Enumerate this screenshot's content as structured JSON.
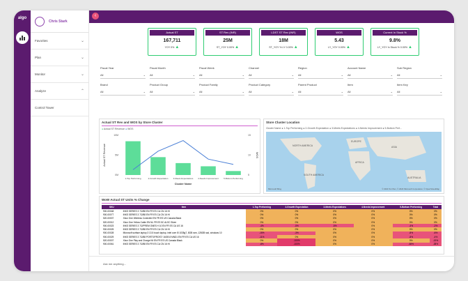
{
  "sidebar": {
    "logo": "algo",
    "user_name": "Chris Stark",
    "items": [
      {
        "label": "Favorites"
      },
      {
        "label": "Plan"
      },
      {
        "label": "Monitor"
      },
      {
        "label": "Analyze"
      },
      {
        "label": "Control Tower"
      }
    ]
  },
  "kpis": [
    {
      "title": "Actual ST",
      "value": "167,711",
      "sub": "YOY 0%"
    },
    {
      "title": "ST Rev (INR)",
      "value": "25M",
      "sub": "ST_YOY 0.00%"
    },
    {
      "title": "LDST ST Rev (INR)",
      "value": "18M",
      "sub": "ST_YOY % LY 0.00%"
    },
    {
      "title": "WOS",
      "value": "5.43",
      "sub": "LY_YOY 0.00%"
    },
    {
      "title": "Current In Stock %",
      "value": "9.8%",
      "sub": "LY_YOY In Stock % 0.00%"
    }
  ],
  "filters_row1": [
    {
      "label": "Fiscal Year",
      "value": "All"
    },
    {
      "label": "Fiscal Month",
      "value": "All"
    },
    {
      "label": "Fiscal Week",
      "value": "All"
    },
    {
      "label": "Channel",
      "value": "All"
    },
    {
      "label": "Region",
      "value": "All"
    },
    {
      "label": "Account Name",
      "value": "All"
    },
    {
      "label": "Sub Region",
      "value": "All"
    }
  ],
  "filters_row2": [
    {
      "label": "Brand",
      "value": "All"
    },
    {
      "label": "Product Group",
      "value": "All"
    },
    {
      "label": "Product Family",
      "value": "All"
    },
    {
      "label": "Product Category",
      "value": "All"
    },
    {
      "label": "Parent Product",
      "value": "All"
    },
    {
      "label": "Item",
      "value": "All"
    },
    {
      "label": "Item Key",
      "value": "All"
    }
  ],
  "chart_panel": {
    "title": "Actual ST Rev and WOS by Store Cluster",
    "legend_a": "Actual ST Revenue",
    "legend_b": "WOS"
  },
  "chart_data": {
    "type": "bar",
    "categories": [
      "1-Top Performing",
      "2-Growth Expectation",
      "3-Meets Expectations",
      "4-Needs Improvement",
      "5-Bottom Performing"
    ],
    "series": [
      {
        "name": "Actual ST Revenue",
        "values": [
          8.5,
          4.5,
          3.0,
          2.2,
          1.0
        ]
      },
      {
        "name": "WOS",
        "values": [
          2,
          9,
          13,
          6,
          4
        ]
      }
    ],
    "xlabel": "Cluster Name",
    "ylabel": "Actual ST Revenue",
    "y2label": "WOS",
    "ylim": [
      0,
      10
    ],
    "y2lim": [
      0,
      15
    ],
    "ytick_labels": [
      "10M",
      "5M",
      "0M"
    ],
    "y2tick_labels": [
      "15",
      "10",
      "5"
    ]
  },
  "map_panel": {
    "title": "Store Cluster Location",
    "legend": "Cluster Name ● 1-Top Performing ● 2-Growth Expectation ● 3-Meets Expectations ● 4-Needs Improvement ● 5-Bottom Perf...",
    "labels": [
      "NORTH AMERICA",
      "EUROPE",
      "ASIA",
      "AFRICA",
      "SOUTH AMERICA",
      "AUSTRALIA"
    ],
    "attribution": "© 2024 TomTom, © 2024 Microsoft Corporation, © OpenStreetMap",
    "brand": "Microsoft Bing"
  },
  "table_panel": {
    "title": "WoW Actual ST Units % Change",
    "columns": [
      "SKU",
      "Item",
      "1-Top Performing",
      "2-Growth Expectation",
      "3-Meets Expectations",
      "4-Needs Improvement",
      "5-Bottom Performing",
      "Total"
    ],
    "rows": [
      [
        "900-00048",
        "INKS SERIES 3 7/2/88 EN FR ES CA CN 16 HI",
        "0%",
        "0%",
        "0%",
        "0%",
        "0%",
        "0%"
      ],
      [
        "900-00077",
        "INKS SERIES 3 7/2/88 EN FR ES CA CN 16 HI",
        "0%",
        "0%",
        "0%",
        "0%",
        "0%",
        "0%"
      ],
      [
        "520-00007",
        "Xbox One Wireless Controller EN FR ES US Canada Black",
        "0%",
        "0%",
        "0%",
        "0%",
        "0%",
        "0%"
      ],
      [
        "520-00012",
        "Xbox One Yellow Cable EN NL FR ES 5C ALSC Silver",
        "0%",
        "0%",
        "0%",
        "0%",
        "0%",
        "0%"
      ],
      [
        "900-00023",
        "INKS SERIES 3 7/2/PREM ONES H 10 EN FR ES CA US 16",
        "-4%",
        "-5%",
        "-5%",
        "0%",
        "-4%",
        "-2%"
      ],
      [
        "900-00025",
        "INKS SERIES 3 7/2/88 EN FR ES CA CN 16 HI",
        "0%",
        "0%",
        "0%",
        "0%",
        "0%",
        "0%"
      ],
      [
        "900-00028",
        "Microsoft surface laptop 3 13.5 touch laptop, intel core i5 1035g7, 8GB ram, 128GB ssd, windows 10",
        "-15%",
        "-3%",
        "0%",
        "0%",
        "-8%",
        "-6%"
      ],
      [
        "900-00029",
        "INKS SERIES 3 7/2/88 PORTS/FROST/ 16GB 8 MND1 EN FR ES CA US 16",
        "-11%",
        "0%",
        "0%",
        "0%",
        "-8%",
        "-4%"
      ],
      [
        "520-00007",
        "Xbox One Play and Charge Kit EN FR ES US Canada Black",
        "0%",
        "-100%",
        "0%",
        "0%",
        "0%",
        "-19%"
      ],
      [
        "900-00061",
        "INKS SERIES 3 7/2/88 EN FR ES CA CN 16 HI",
        "-8%",
        "-100%",
        "0%",
        "0%",
        "-38%",
        "-38%"
      ]
    ]
  },
  "ask_prompt": "Ask me anything..."
}
